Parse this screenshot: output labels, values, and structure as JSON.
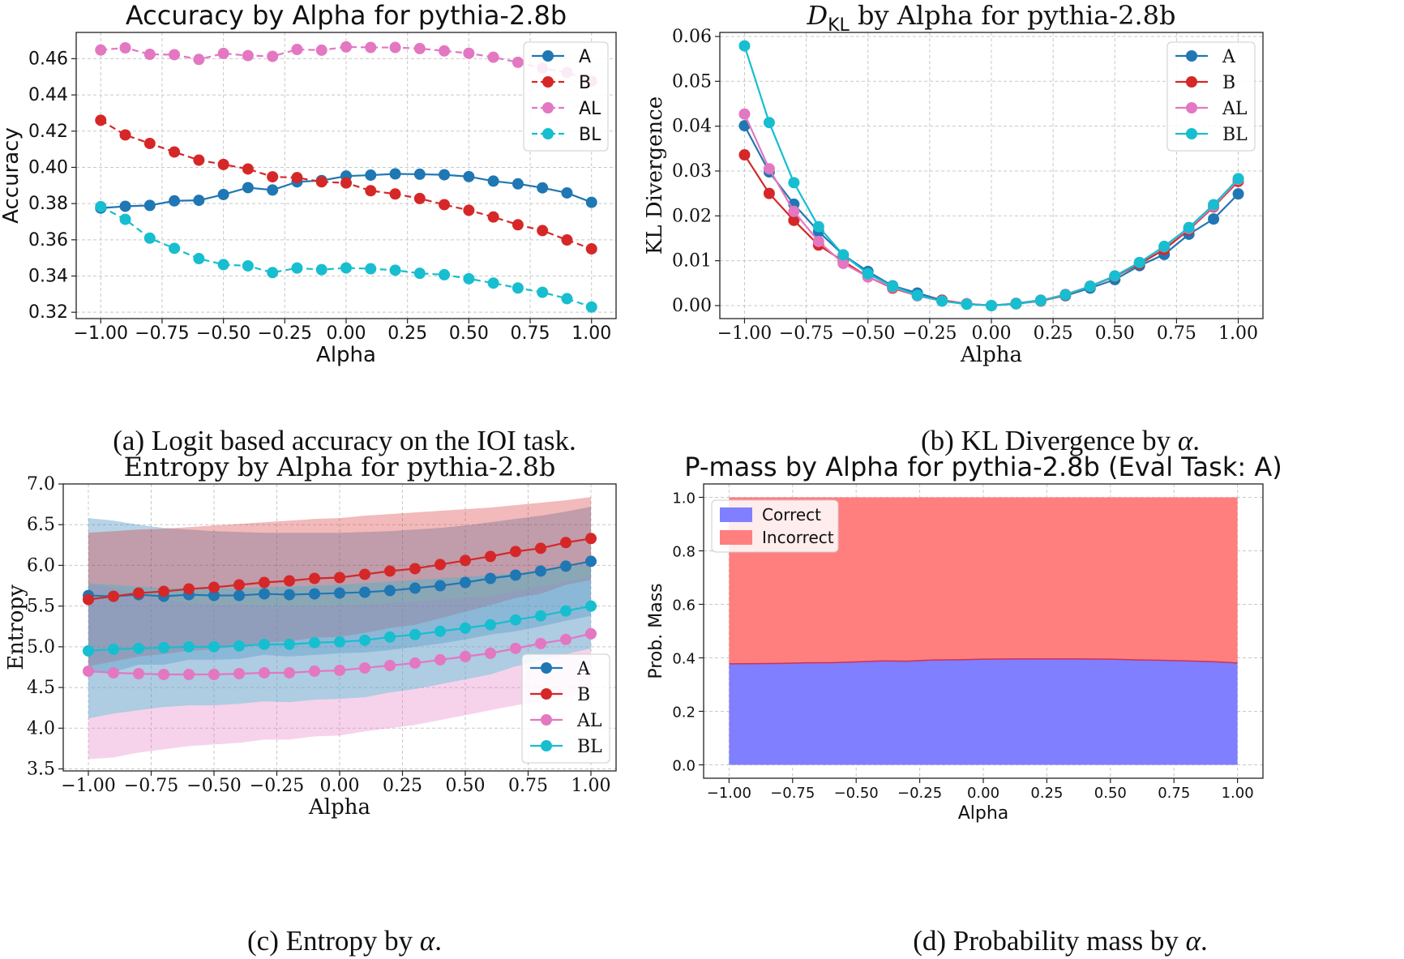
{
  "colors": {
    "A": "#1f77b4",
    "B": "#d62728",
    "AL": "#e377c2",
    "BL": "#17becf",
    "correct": "#7f7fff",
    "incorrect": "#ff7f7f"
  },
  "chart_data": [
    {
      "id": "a",
      "type": "line",
      "title": "Accuracy by Alpha for pythia-2.8b",
      "xlabel": "Alpha",
      "ylabel": "Accuracy",
      "caption": "(a) Logit based accuracy on the IOI task.",
      "grid": true,
      "legend_position": "top-right",
      "xlim": [
        -1.1,
        1.1
      ],
      "ylim": [
        0.3165,
        0.4745
      ],
      "xticks": [
        -1.0,
        -0.75,
        -0.5,
        -0.25,
        0.0,
        0.25,
        0.5,
        0.75,
        1.0
      ],
      "xtick_labels": [
        "−1.00",
        "−0.75",
        "−0.50",
        "−0.25",
        "0.00",
        "0.25",
        "0.50",
        "0.75",
        "1.00"
      ],
      "yticks": [
        0.32,
        0.34,
        0.36,
        0.38,
        0.4,
        0.42,
        0.44,
        0.46
      ],
      "ytick_labels": [
        "0.32",
        "0.34",
        "0.36",
        "0.38",
        "0.40",
        "0.42",
        "0.44",
        "0.46"
      ],
      "x": [
        -1.0,
        -0.9,
        -0.8,
        -0.7,
        -0.6,
        -0.5,
        -0.4,
        -0.3,
        -0.2,
        -0.1,
        0.0,
        0.1,
        0.2,
        0.3,
        0.4,
        0.5,
        0.6,
        0.7,
        0.8,
        0.9,
        1.0
      ],
      "series": [
        {
          "name": "A",
          "color_key": "A",
          "dashed": false,
          "values": [
            0.3775,
            0.3785,
            0.379,
            0.3815,
            0.3818,
            0.385,
            0.3888,
            0.3875,
            0.392,
            0.3927,
            0.3952,
            0.3957,
            0.3964,
            0.3962,
            0.3959,
            0.3949,
            0.3924,
            0.3909,
            0.3887,
            0.3859,
            0.3807
          ]
        },
        {
          "name": "B",
          "color_key": "B",
          "dashed": true,
          "values": [
            0.426,
            0.4179,
            0.4132,
            0.4085,
            0.404,
            0.4016,
            0.3991,
            0.3948,
            0.3943,
            0.392,
            0.3914,
            0.3871,
            0.3853,
            0.3828,
            0.3794,
            0.3763,
            0.3726,
            0.3683,
            0.3651,
            0.3599,
            0.355
          ]
        },
        {
          "name": "AL",
          "color_key": "AL",
          "dashed": true,
          "values": [
            0.4648,
            0.466,
            0.4624,
            0.4622,
            0.4596,
            0.4629,
            0.4617,
            0.4613,
            0.4651,
            0.4647,
            0.4665,
            0.4662,
            0.4662,
            0.4656,
            0.4643,
            0.463,
            0.4608,
            0.458,
            0.4547,
            0.4524,
            0.4476
          ]
        },
        {
          "name": "BL",
          "color_key": "BL",
          "dashed": true,
          "values": [
            0.3783,
            0.3713,
            0.3609,
            0.3553,
            0.3496,
            0.3463,
            0.3456,
            0.3419,
            0.3444,
            0.3435,
            0.3445,
            0.344,
            0.3432,
            0.3415,
            0.3407,
            0.3385,
            0.3361,
            0.3334,
            0.331,
            0.3275,
            0.3229
          ]
        }
      ],
      "legend": [
        "A",
        "B",
        "AL",
        "BL"
      ]
    },
    {
      "id": "b",
      "type": "line",
      "title_main": "D",
      "title_sub": "KL",
      "title_rest": " by Alpha for pythia-2.8b",
      "xlabel": "Alpha",
      "ylabel": "KL Divergence",
      "caption_text": "(b) KL Divergence by ",
      "caption_symbol": "α",
      "caption_end": ".",
      "grid": true,
      "legend_position": "top-right",
      "xlim": [
        -1.1,
        1.1
      ],
      "ylim": [
        -0.0029,
        0.0609
      ],
      "xticks": [
        -1.0,
        -0.75,
        -0.5,
        -0.25,
        0.0,
        0.25,
        0.5,
        0.75,
        1.0
      ],
      "xtick_labels": [
        "−1.00",
        "−0.75",
        "−0.50",
        "−0.25",
        "0.00",
        "0.25",
        "0.50",
        "0.75",
        "1.00"
      ],
      "yticks": [
        0.0,
        0.01,
        0.02,
        0.03,
        0.04,
        0.05,
        0.06
      ],
      "ytick_labels": [
        "0.00",
        "0.01",
        "0.02",
        "0.03",
        "0.04",
        "0.05",
        "0.06"
      ],
      "x": [
        -1.0,
        -0.9,
        -0.8,
        -0.7,
        -0.6,
        -0.5,
        -0.4,
        -0.3,
        -0.2,
        -0.1,
        0.0,
        0.1,
        0.2,
        0.3,
        0.4,
        0.5,
        0.6,
        0.7,
        0.8,
        0.9,
        1.0
      ],
      "series": [
        {
          "name": "A",
          "color_key": "A",
          "dashed": false,
          "values": [
            0.0401,
            0.0298,
            0.0226,
            0.0165,
            0.0113,
            0.0076,
            0.0044,
            0.0028,
            0.0012,
            0.0004,
            0.0,
            0.0005,
            0.0012,
            0.0022,
            0.0039,
            0.0058,
            0.0089,
            0.0114,
            0.0159,
            0.0193,
            0.0249
          ]
        },
        {
          "name": "B",
          "color_key": "B",
          "dashed": false,
          "values": [
            0.0336,
            0.025,
            0.019,
            0.0135,
            0.0099,
            0.0064,
            0.0039,
            0.0022,
            0.0012,
            0.0004,
            0.0,
            0.0004,
            0.001,
            0.0023,
            0.0043,
            0.0065,
            0.0093,
            0.0125,
            0.0169,
            0.022,
            0.0277
          ]
        },
        {
          "name": "AL",
          "color_key": "AL",
          "dashed": false,
          "values": [
            0.0427,
            0.0305,
            0.021,
            0.0143,
            0.0094,
            0.0064,
            0.0041,
            0.0022,
            0.001,
            0.0004,
            0.0,
            0.0004,
            0.0011,
            0.0025,
            0.0043,
            0.0066,
            0.0096,
            0.0131,
            0.0172,
            0.0222,
            0.0281
          ]
        },
        {
          "name": "BL",
          "color_key": "BL",
          "dashed": false,
          "values": [
            0.0579,
            0.0408,
            0.0274,
            0.0176,
            0.0113,
            0.0071,
            0.0043,
            0.0023,
            0.001,
            0.0003,
            0.0,
            0.0004,
            0.0011,
            0.0024,
            0.0043,
            0.0066,
            0.0096,
            0.0132,
            0.0174,
            0.0225,
            0.0283
          ]
        }
      ],
      "legend": [
        "A",
        "B",
        "AL",
        "BL"
      ]
    },
    {
      "id": "c",
      "type": "line",
      "title": "Entropy by Alpha for pythia-2.8b",
      "xlabel": "Alpha",
      "ylabel": "Entropy",
      "caption_text": "(c) Entropy by ",
      "caption_symbol": "α",
      "caption_end": ".",
      "grid": true,
      "legend_position": "bottom-right",
      "xlim": [
        -1.1,
        1.1
      ],
      "ylim": [
        3.475,
        7.0
      ],
      "xticks": [
        -1.0,
        -0.75,
        -0.5,
        -0.25,
        0.0,
        0.25,
        0.5,
        0.75,
        1.0
      ],
      "xtick_labels": [
        "−1.00",
        "−0.75",
        "−0.50",
        "−0.25",
        "0.00",
        "0.25",
        "0.50",
        "0.75",
        "1.00"
      ],
      "yticks": [
        3.5,
        4.0,
        4.5,
        5.0,
        5.5,
        6.0,
        6.5,
        7.0
      ],
      "ytick_labels": [
        "3.5",
        "4.0",
        "4.5",
        "5.0",
        "5.5",
        "6.0",
        "6.5",
        "7.0"
      ],
      "x": [
        -1.0,
        -0.9,
        -0.8,
        -0.7,
        -0.6,
        -0.5,
        -0.4,
        -0.3,
        -0.2,
        -0.1,
        0.0,
        0.1,
        0.2,
        0.3,
        0.4,
        0.5,
        0.6,
        0.7,
        0.8,
        0.9,
        1.0
      ],
      "series": [
        {
          "name": "A",
          "color_key": "A",
          "values": [
            5.63,
            5.62,
            5.64,
            5.62,
            5.64,
            5.63,
            5.63,
            5.65,
            5.64,
            5.65,
            5.66,
            5.67,
            5.69,
            5.72,
            5.75,
            5.79,
            5.84,
            5.88,
            5.93,
            5.99,
            6.05
          ],
          "upper": [
            6.58,
            6.55,
            6.5,
            6.46,
            6.44,
            6.42,
            6.41,
            6.4,
            6.4,
            6.4,
            6.4,
            6.41,
            6.42,
            6.44,
            6.46,
            6.49,
            6.53,
            6.57,
            6.61,
            6.66,
            6.72
          ],
          "lower": [
            4.68,
            4.69,
            4.78,
            4.78,
            4.84,
            4.84,
            4.85,
            4.9,
            4.88,
            4.9,
            4.92,
            4.93,
            4.96,
            5.0,
            5.04,
            5.09,
            5.15,
            5.19,
            5.25,
            5.32,
            5.38
          ]
        },
        {
          "name": "B",
          "color_key": "B",
          "values": [
            5.58,
            5.62,
            5.66,
            5.68,
            5.71,
            5.73,
            5.76,
            5.79,
            5.81,
            5.84,
            5.85,
            5.89,
            5.93,
            5.96,
            6.01,
            6.06,
            6.11,
            6.17,
            6.21,
            6.28,
            6.33
          ],
          "upper": [
            6.4,
            6.42,
            6.44,
            6.45,
            6.47,
            6.49,
            6.51,
            6.53,
            6.55,
            6.57,
            6.58,
            6.61,
            6.63,
            6.65,
            6.67,
            6.69,
            6.71,
            6.74,
            6.77,
            6.8,
            6.84
          ],
          "lower": [
            4.76,
            4.82,
            4.88,
            4.91,
            4.95,
            4.97,
            5.01,
            5.05,
            5.07,
            5.11,
            5.12,
            5.17,
            5.23,
            5.27,
            5.35,
            5.43,
            5.51,
            5.6,
            5.65,
            5.76,
            5.82
          ]
        },
        {
          "name": "AL",
          "color_key": "AL",
          "values": [
            4.7,
            4.68,
            4.67,
            4.66,
            4.66,
            4.66,
            4.67,
            4.68,
            4.68,
            4.7,
            4.71,
            4.74,
            4.77,
            4.8,
            4.84,
            4.88,
            4.92,
            4.98,
            5.04,
            5.09,
            5.16
          ],
          "upper": [
            5.78,
            5.72,
            5.64,
            5.58,
            5.54,
            5.52,
            5.52,
            5.5,
            5.5,
            5.5,
            5.51,
            5.52,
            5.54,
            5.56,
            5.58,
            5.6,
            5.62,
            5.68,
            5.74,
            5.8,
            5.86
          ],
          "lower": [
            3.62,
            3.64,
            3.7,
            3.74,
            3.78,
            3.8,
            3.82,
            3.86,
            3.86,
            3.9,
            3.91,
            3.96,
            4.0,
            4.04,
            4.1,
            4.16,
            4.22,
            4.28,
            4.34,
            4.38,
            4.46
          ]
        },
        {
          "name": "BL",
          "color_key": "BL",
          "values": [
            4.95,
            4.97,
            4.98,
            4.99,
            5.0,
            5.0,
            5.01,
            5.03,
            5.03,
            5.05,
            5.06,
            5.08,
            5.12,
            5.15,
            5.19,
            5.23,
            5.27,
            5.33,
            5.38,
            5.44,
            5.5
          ],
          "upper": [
            5.78,
            5.76,
            5.74,
            5.72,
            5.72,
            5.72,
            5.72,
            5.73,
            5.74,
            5.75,
            5.76,
            5.78,
            5.8,
            5.82,
            5.84,
            5.86,
            5.88,
            5.9,
            5.93,
            5.97,
            6.02
          ],
          "lower": [
            4.12,
            4.18,
            4.22,
            4.26,
            4.28,
            4.28,
            4.3,
            4.33,
            4.32,
            4.35,
            4.36,
            4.38,
            4.44,
            4.48,
            4.54,
            4.6,
            4.66,
            4.76,
            4.83,
            4.91,
            4.98
          ]
        }
      ],
      "legend": [
        "A",
        "B",
        "AL",
        "BL"
      ]
    },
    {
      "id": "d",
      "type": "area",
      "title": "P-mass by Alpha for pythia-2.8b (Eval Task: A)",
      "xlabel": "Alpha",
      "ylabel": "Prob. Mass",
      "caption_text": "(d) Probability mass by ",
      "caption_symbol": "α",
      "caption_end": ".",
      "grid": true,
      "legend_position": "top-left",
      "xlim": [
        -1.1,
        1.1
      ],
      "ylim": [
        -0.05,
        1.05
      ],
      "xticks": [
        -1.0,
        -0.75,
        -0.5,
        -0.25,
        0.0,
        0.25,
        0.5,
        0.75,
        1.0
      ],
      "xtick_labels": [
        "−1.00",
        "−0.75",
        "−0.50",
        "−0.25",
        "0.00",
        "0.25",
        "0.50",
        "0.75",
        "1.00"
      ],
      "yticks": [
        0.0,
        0.2,
        0.4,
        0.6,
        0.8,
        1.0
      ],
      "ytick_labels": [
        "0.0",
        "0.2",
        "0.4",
        "0.6",
        "0.8",
        "1.0"
      ],
      "x": [
        -1.0,
        -0.9,
        -0.8,
        -0.7,
        -0.6,
        -0.5,
        -0.4,
        -0.3,
        -0.2,
        -0.1,
        0.0,
        0.1,
        0.2,
        0.3,
        0.4,
        0.5,
        0.6,
        0.7,
        0.8,
        0.9,
        1.0
      ],
      "series": [
        {
          "name": "Correct",
          "color_key": "correct",
          "values": [
            0.3775,
            0.3785,
            0.379,
            0.3815,
            0.3818,
            0.385,
            0.3888,
            0.3875,
            0.392,
            0.3927,
            0.3952,
            0.3957,
            0.3964,
            0.3962,
            0.3959,
            0.3949,
            0.3924,
            0.3909,
            0.3887,
            0.3859,
            0.3807
          ]
        },
        {
          "name": "Incorrect",
          "color_key": "incorrect",
          "values": [
            0.6225,
            0.6215,
            0.621,
            0.6185,
            0.6182,
            0.615,
            0.6112,
            0.6125,
            0.608,
            0.6073,
            0.6048,
            0.6043,
            0.6036,
            0.6038,
            0.6041,
            0.6051,
            0.6076,
            0.6091,
            0.6113,
            0.6141,
            0.6193
          ]
        }
      ],
      "legend": [
        "Correct",
        "Incorrect"
      ]
    }
  ]
}
